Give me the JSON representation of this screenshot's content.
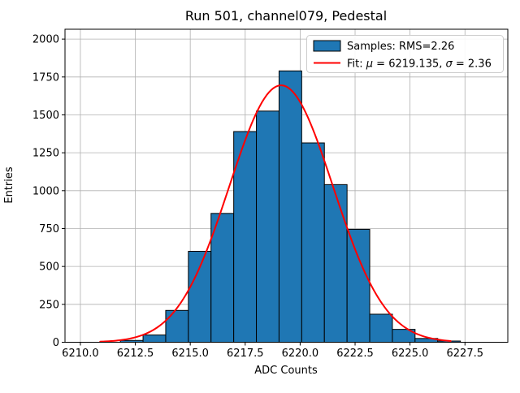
{
  "window": {
    "kind": "matplotlib-figure"
  },
  "chart_data": {
    "type": "bar",
    "subtype": "histogram-with-gaussian-fit",
    "title": "Run 501, channel079, Pedestal",
    "xlabel": "ADC Counts",
    "ylabel": "Entries",
    "xlim": [
      6209.3,
      6229.45
    ],
    "ylim": [
      0,
      2065
    ],
    "grid": true,
    "grid_color": "#b0b0b0",
    "xticks": {
      "values": [
        6210.0,
        6212.5,
        6215.0,
        6217.5,
        6220.0,
        6222.5,
        6225.0,
        6227.5
      ],
      "labels": [
        "6210.0",
        "6212.5",
        "6215.0",
        "6217.5",
        "6220.0",
        "6222.5",
        "6225.0",
        "6227.5"
      ]
    },
    "yticks": {
      "values": [
        0,
        250,
        500,
        750,
        1000,
        1250,
        1500,
        1750,
        2000
      ],
      "labels": [
        "0",
        "250",
        "500",
        "750",
        "1000",
        "1250",
        "1500",
        "1750",
        "2000"
      ]
    },
    "histogram": {
      "rms": 2.26,
      "bin_start": 6211.82,
      "bin_width": 1.0315,
      "counts": [
        12,
        48,
        210,
        600,
        850,
        1390,
        1525,
        1790,
        1315,
        1040,
        745,
        185,
        85,
        25,
        8
      ],
      "fill_color": "#1f77b4",
      "edge_color": "#000000"
    },
    "fit": {
      "model": "gaussian",
      "mu": 6219.135,
      "sigma": 2.36,
      "amplitude": 1695,
      "x_start": 6210.9,
      "x_end": 6226.85,
      "color": "#ff0000",
      "linewidth": 2
    },
    "legend": {
      "position": "upper-right",
      "border_color": "#cccccc",
      "entries": [
        {
          "swatch": "patch",
          "label": "Samples: RMS=2.26"
        },
        {
          "swatch": "line",
          "label_parts": [
            "Fit: ",
            "μ",
            " = 6219.135, ",
            "σ",
            " = 2.36"
          ]
        }
      ]
    }
  }
}
